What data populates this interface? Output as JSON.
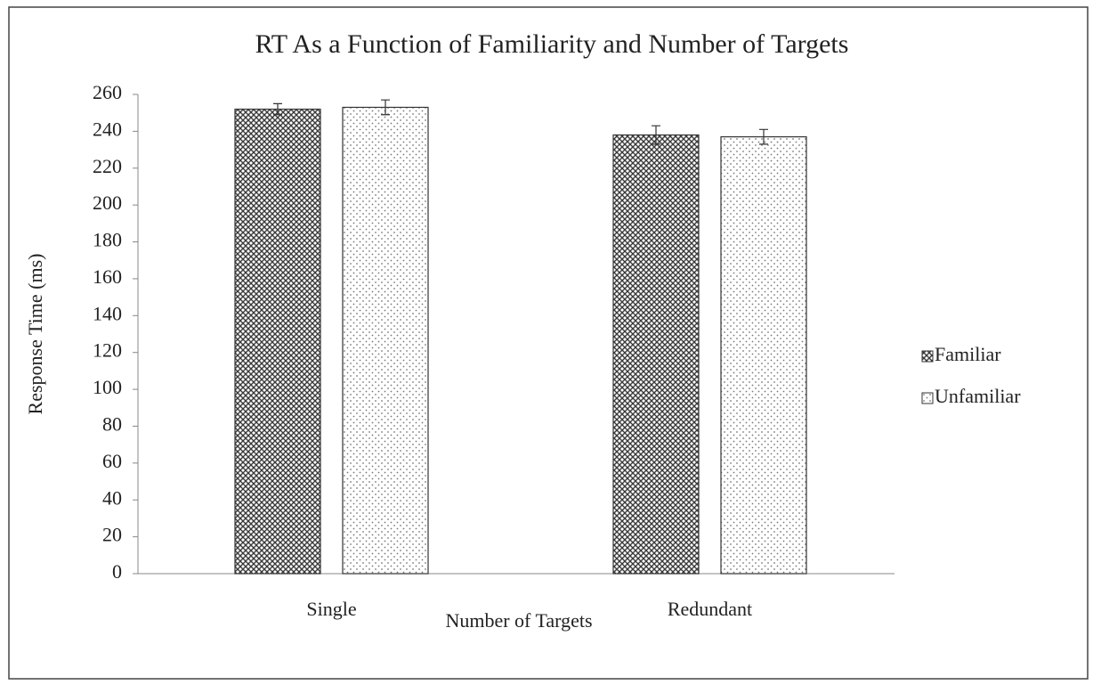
{
  "chart_data": {
    "type": "bar",
    "title": "RT As a Function of Familiarity and Number of Targets",
    "x_label": "Number of Targets",
    "y_label": "Response Time (ms)",
    "categories": [
      "Single",
      "Redundant"
    ],
    "series": [
      {
        "name": "Familiar",
        "color": "#3a3a3a",
        "values": [
          252,
          238
        ],
        "errors": [
          3,
          5
        ]
      },
      {
        "name": "Unfamiliar",
        "color": "#7a7a7a",
        "values": [
          253,
          237
        ],
        "errors": [
          4,
          4
        ]
      }
    ],
    "ylim": [
      0,
      260
    ],
    "yticks": [
      0,
      20,
      40,
      60,
      80,
      100,
      120,
      140,
      160,
      180,
      200,
      220,
      240,
      260
    ],
    "legend": "right"
  }
}
